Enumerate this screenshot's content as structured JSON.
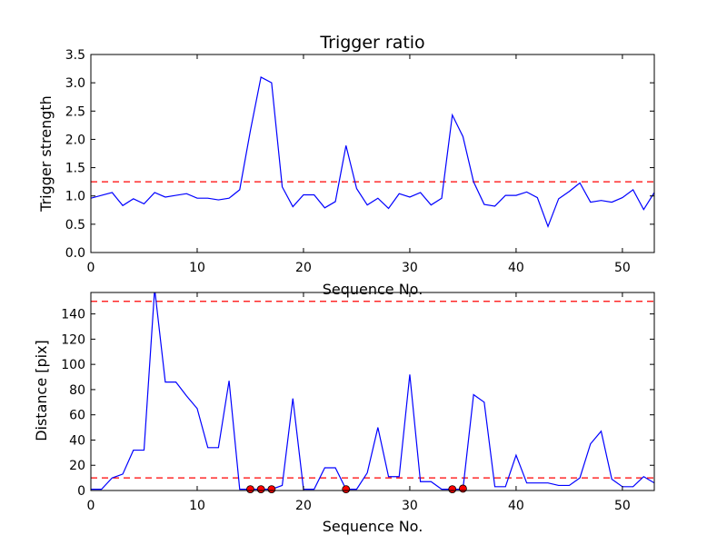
{
  "chart_data": [
    {
      "type": "line",
      "title": "Trigger ratio",
      "xlabel": "Sequence No.",
      "ylabel": "Trigger strength",
      "xlim": [
        0,
        53
      ],
      "ylim": [
        0,
        3.5
      ],
      "xticks": [
        0,
        10,
        20,
        30,
        40,
        50
      ],
      "yticks": [
        0.0,
        0.5,
        1.0,
        1.5,
        2.0,
        2.5,
        3.0,
        3.5
      ],
      "ytick_decimals": 1,
      "grid": false,
      "colors": {
        "line": "#0000ff",
        "threshold": "#ff0000"
      },
      "series": [
        {
          "x": [
            0,
            1,
            2,
            3,
            4,
            5,
            6,
            7,
            8,
            9,
            10,
            11,
            12,
            13,
            14,
            15,
            16,
            17,
            18,
            19,
            20,
            21,
            22,
            23,
            24,
            25,
            26,
            27,
            28,
            29,
            30,
            31,
            32,
            33,
            34,
            35,
            36,
            37,
            38,
            39,
            40,
            41,
            42,
            43,
            44,
            45,
            46,
            47,
            48,
            49,
            50,
            51,
            52,
            53
          ],
          "y": [
            0.96,
            1.01,
            1.06,
            0.83,
            0.95,
            0.86,
            1.06,
            0.98,
            1.01,
            1.04,
            0.96,
            0.96,
            0.93,
            0.96,
            1.11,
            2.15,
            3.1,
            3.0,
            1.16,
            0.81,
            1.02,
            1.02,
            0.79,
            0.9,
            1.89,
            1.13,
            0.84,
            0.96,
            0.78,
            1.04,
            0.98,
            1.06,
            0.84,
            0.96,
            2.43,
            2.05,
            1.25,
            0.85,
            0.82,
            1.01,
            1.01,
            1.07,
            0.97,
            0.46,
            0.95,
            1.08,
            1.23,
            0.89,
            0.92,
            0.89,
            0.97,
            1.11,
            0.76,
            1.06
          ]
        }
      ],
      "threshold_lines": [
        1.25
      ]
    },
    {
      "type": "line",
      "title": "",
      "xlabel": "Sequence No.",
      "ylabel": "Distance [pix]",
      "xlim": [
        0,
        53
      ],
      "ylim": [
        0,
        157
      ],
      "xticks": [
        0,
        10,
        20,
        30,
        40,
        50
      ],
      "yticks": [
        0,
        20,
        40,
        60,
        80,
        100,
        120,
        140
      ],
      "ytick_decimals": 0,
      "grid": false,
      "colors": {
        "line": "#0000ff",
        "threshold": "#ff0000",
        "marker": "#ff0000"
      },
      "series": [
        {
          "x": [
            0,
            1,
            2,
            3,
            4,
            5,
            6,
            7,
            8,
            9,
            10,
            11,
            12,
            13,
            14,
            15,
            16,
            17,
            18,
            19,
            20,
            21,
            22,
            23,
            24,
            25,
            26,
            27,
            28,
            29,
            30,
            31,
            32,
            33,
            34,
            35,
            36,
            37,
            38,
            39,
            40,
            41,
            42,
            43,
            44,
            45,
            46,
            47,
            48,
            49,
            50,
            51,
            52,
            53
          ],
          "y": [
            1,
            1,
            10,
            13,
            32,
            32,
            160,
            86,
            86,
            75,
            65,
            34,
            34,
            87,
            1,
            1,
            1,
            1,
            4,
            73,
            1,
            1,
            18,
            18,
            1,
            1,
            14,
            50,
            11,
            11,
            92,
            7,
            7,
            1,
            1,
            1,
            76,
            70,
            3,
            3,
            28,
            6,
            6,
            6,
            4,
            4,
            10,
            37,
            47,
            9,
            3,
            3,
            11,
            6
          ]
        }
      ],
      "threshold_lines": [
        10,
        150
      ],
      "markers": {
        "x": [
          15,
          16,
          17,
          24,
          34,
          35
        ],
        "y": [
          1,
          1,
          1,
          1,
          1,
          1.5
        ]
      }
    }
  ]
}
